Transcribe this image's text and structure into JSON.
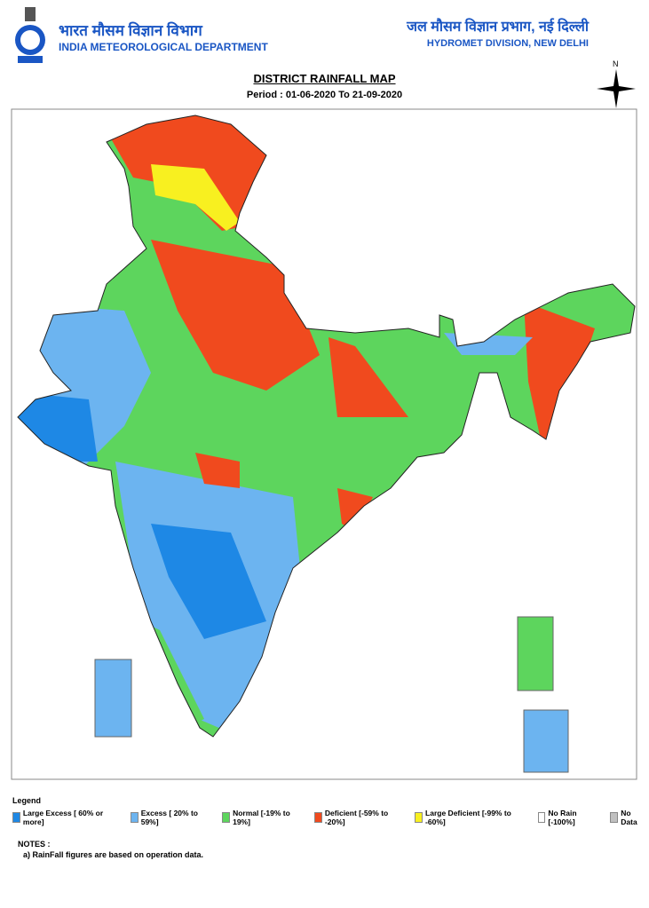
{
  "header": {
    "left_hindi": "भारत मौसम विज्ञान विभाग",
    "left_english": "INDIA METEOROLOGICAL DEPARTMENT",
    "right_hindi": "जल मौसम विज्ञान प्रभाग, नई दिल्ली",
    "right_english": "HYDROMET DIVISION, NEW DELHI"
  },
  "map": {
    "title": "DISTRICT RAINFALL MAP",
    "period": "Period : 01-06-2020 To 21-09-2020",
    "north": "N"
  },
  "legend": {
    "title": "Legend",
    "items": [
      {
        "label": "Large Excess [ 60% or more]",
        "color": "#1e88e5"
      },
      {
        "label": "Excess [ 20% to 59%]",
        "color": "#6cb4f0"
      },
      {
        "label": "Normal [-19% to 19%]",
        "color": "#5dd55d"
      },
      {
        "label": "Deficient [-59% to -20%]",
        "color": "#f04a1e"
      },
      {
        "label": "Large Deficient [-99% to -60%]",
        "color": "#f8f020"
      },
      {
        "label": "No Rain  [-100%]",
        "color": "#ffffff"
      },
      {
        "label": "No Data",
        "color": "#c0c0c0"
      }
    ]
  },
  "notes": {
    "title": "NOTES :",
    "items": [
      "a) RainFall figures are based on operation data."
    ]
  }
}
